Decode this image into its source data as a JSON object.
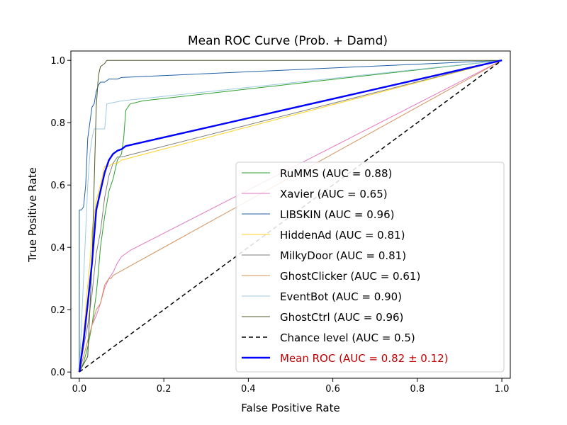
{
  "chart_data": {
    "type": "line",
    "title": "Mean ROC Curve (Prob. + Damd)",
    "xlabel": "False Positive Rate",
    "ylabel": "True Positive Rate",
    "xlim": [
      -0.02,
      1.02
    ],
    "ylim": [
      -0.02,
      1.03
    ],
    "xticks": [
      "0.0",
      "0.2",
      "0.4",
      "0.6",
      "0.8",
      "1.0"
    ],
    "yticks": [
      "0.0",
      "0.2",
      "0.4",
      "0.6",
      "0.8",
      "1.0"
    ],
    "xtick_values": [
      0,
      0.2,
      0.4,
      0.6,
      0.8,
      1.0
    ],
    "ytick_values": [
      0,
      0.2,
      0.4,
      0.6,
      0.8,
      1.0
    ],
    "legend_position": "lower right",
    "series": [
      {
        "name": "RuMMS",
        "label": "RuMMS (AUC = 0.88)",
        "color": "#2ca02c",
        "width": 1,
        "dash": "",
        "x": [
          0,
          0.01,
          0.02,
          0.03,
          0.04,
          0.045,
          0.05,
          0.055,
          0.06,
          0.065,
          0.07,
          0.075,
          0.08,
          0.085,
          0.09,
          0.1,
          0.105,
          0.11,
          0.12,
          0.15,
          1.0
        ],
        "y": [
          0,
          0.03,
          0.08,
          0.15,
          0.25,
          0.32,
          0.4,
          0.45,
          0.5,
          0.54,
          0.58,
          0.6,
          0.62,
          0.65,
          0.68,
          0.7,
          0.75,
          0.84,
          0.86,
          0.87,
          1.0
        ]
      },
      {
        "name": "Xavier",
        "label": "Xavier (AUC = 0.65)",
        "color": "#e377c2",
        "width": 1,
        "dash": "",
        "x": [
          0,
          0.01,
          0.02,
          0.03,
          0.04,
          0.05,
          0.06,
          0.07,
          0.08,
          0.09,
          0.1,
          0.11,
          0.12,
          1.0
        ],
        "y": [
          0,
          0.05,
          0.1,
          0.15,
          0.18,
          0.22,
          0.27,
          0.3,
          0.32,
          0.35,
          0.37,
          0.38,
          0.39,
          1.0
        ]
      },
      {
        "name": "LIBSKIN",
        "label": "LIBSKIN (AUC = 0.96)",
        "color": "#1f5fa6",
        "width": 1,
        "dash": "",
        "x": [
          0,
          0.0,
          0.005,
          0.01,
          0.015,
          0.02,
          0.025,
          0.03,
          0.035,
          0.04,
          0.045,
          0.05,
          0.06,
          0.07,
          0.08,
          0.09,
          0.1,
          1.0
        ],
        "y": [
          0,
          0.52,
          0.52,
          0.53,
          0.6,
          0.75,
          0.8,
          0.85,
          0.86,
          0.9,
          0.92,
          0.93,
          0.93,
          0.94,
          0.94,
          0.94,
          0.945,
          1.0
        ]
      },
      {
        "name": "HiddenAd",
        "label": "HiddenAd (AUC = 0.81)",
        "color": "#ffd21f",
        "width": 1,
        "dash": "",
        "x": [
          0,
          0.01,
          0.02,
          0.025,
          0.03,
          0.04,
          0.05,
          0.06,
          0.07,
          0.08,
          0.09,
          0.1,
          1.0
        ],
        "y": [
          0,
          0.12,
          0.28,
          0.35,
          0.45,
          0.55,
          0.6,
          0.66,
          0.66,
          0.67,
          0.67,
          0.68,
          1.0
        ]
      },
      {
        "name": "MilkyDoor",
        "label": "MilkyDoor (AUC = 0.81)",
        "color": "#7f7f7f",
        "width": 1,
        "dash": "",
        "x": [
          0,
          0.01,
          0.02,
          0.03,
          0.04,
          0.05,
          0.06,
          0.07,
          0.08,
          0.09,
          0.1,
          1.0
        ],
        "y": [
          0,
          0.08,
          0.15,
          0.25,
          0.38,
          0.45,
          0.56,
          0.63,
          0.67,
          0.69,
          0.69,
          1.0
        ]
      },
      {
        "name": "GhostClicker",
        "label": "GhostClicker (AUC = 0.61)",
        "color": "#d4915a",
        "width": 1,
        "dash": "",
        "x": [
          0,
          0.01,
          0.02,
          0.03,
          0.04,
          0.05,
          0.06,
          0.07,
          0.075,
          0.08,
          1.0
        ],
        "y": [
          0,
          0.05,
          0.1,
          0.15,
          0.2,
          0.22,
          0.28,
          0.3,
          0.3,
          0.31,
          1.0
        ]
      },
      {
        "name": "EventBot",
        "label": "EventBot (AUC = 0.90)",
        "color": "#9ecae1",
        "width": 1,
        "dash": "",
        "x": [
          0,
          0.01,
          0.015,
          0.02,
          0.025,
          0.03,
          0.035,
          0.04,
          0.05,
          0.06,
          0.065,
          0.1,
          1.0
        ],
        "y": [
          0,
          0.3,
          0.45,
          0.6,
          0.7,
          0.75,
          0.78,
          0.78,
          0.78,
          0.78,
          0.86,
          0.87,
          1.0
        ]
      },
      {
        "name": "GhostCtrl",
        "label": "GhostCtrl (AUC = 0.96)",
        "color": "#4d5a2a",
        "width": 1,
        "dash": "",
        "x": [
          0,
          0.02,
          0.03,
          0.035,
          0.04,
          0.045,
          0.05,
          0.06,
          0.065,
          1.0
        ],
        "y": [
          0,
          0.05,
          0.35,
          0.6,
          0.85,
          0.95,
          0.98,
          0.99,
          1.0,
          1.0
        ]
      },
      {
        "name": "Chance level",
        "label": "Chance level (AUC = 0.5)",
        "color": "#000000",
        "width": 1.5,
        "dash": "6,4",
        "x": [
          0,
          1
        ],
        "y": [
          0,
          1
        ]
      },
      {
        "name": "Mean ROC",
        "label": "Mean ROC (AUC = 0.82 ± 0.12)",
        "color": "#0000ff",
        "width": 2.4,
        "dash": "",
        "label_color": "#c00000",
        "x": [
          0,
          0.01,
          0.02,
          0.03,
          0.04,
          0.05,
          0.06,
          0.07,
          0.08,
          0.09,
          0.1,
          0.11,
          1.0
        ],
        "y": [
          0,
          0.1,
          0.22,
          0.35,
          0.52,
          0.58,
          0.64,
          0.68,
          0.7,
          0.71,
          0.715,
          0.725,
          1.0
        ]
      }
    ]
  }
}
